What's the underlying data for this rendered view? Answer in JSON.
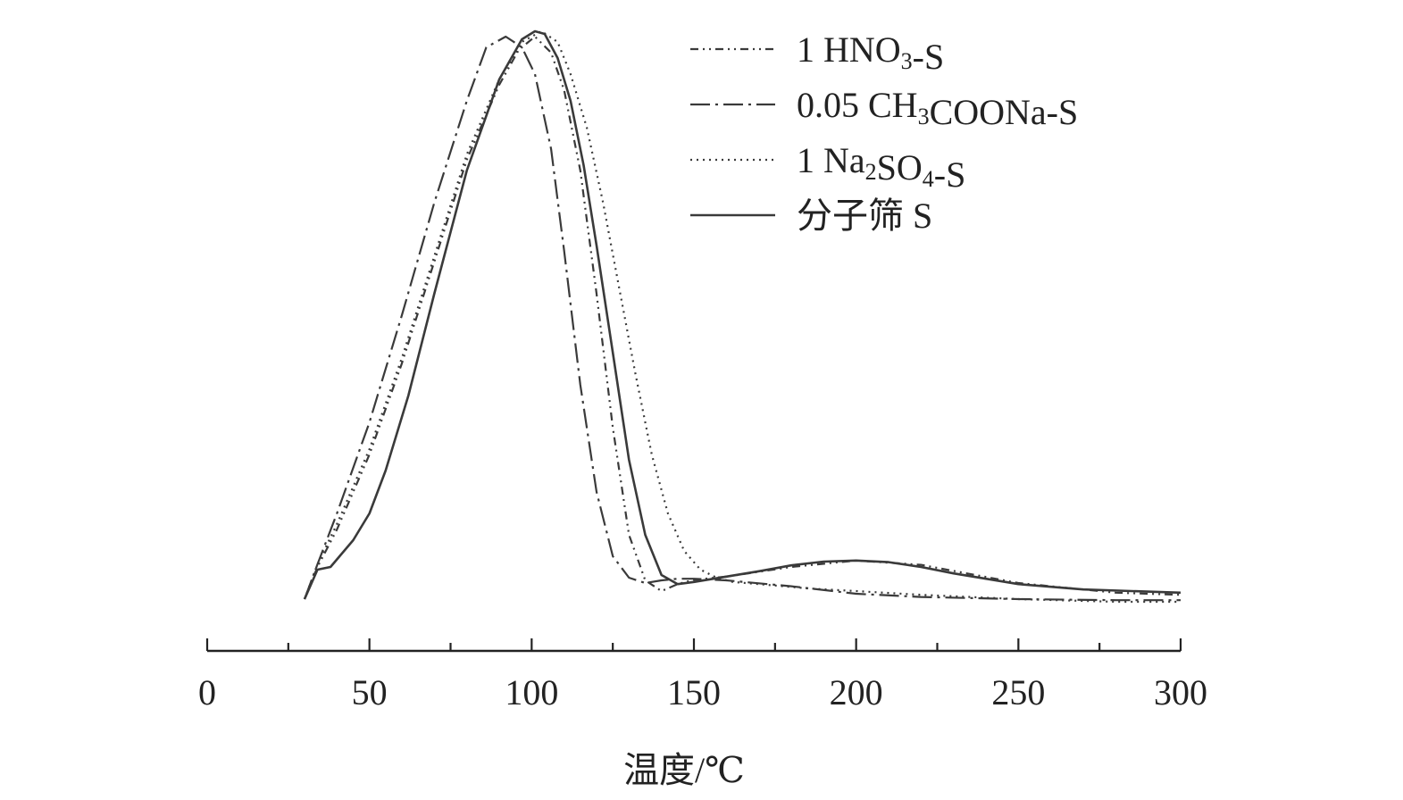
{
  "chart_data": {
    "type": "line",
    "title": "",
    "xlabel": "温度/℃",
    "ylabel": "",
    "xlim": [
      0,
      300
    ],
    "ylim": [
      0,
      1.1
    ],
    "x_ticks": [
      0,
      50,
      100,
      150,
      200,
      250,
      300
    ],
    "x_tick_labels": [
      "0",
      "50",
      "100",
      "150",
      "200",
      "250",
      "300"
    ],
    "grid": false,
    "legend_position": "top-right",
    "series": [
      {
        "name": "1 HNO3-S",
        "label_parts": [
          {
            "t": "1 HNO"
          },
          {
            "t": "3",
            "sub": true
          },
          {
            "t": "-S"
          }
        ],
        "style": "dash-dot-dot",
        "color": "#3a3a3a",
        "x": [
          30,
          34,
          40,
          50,
          60,
          70,
          80,
          90,
          96,
          101,
          106,
          110,
          115,
          120,
          125,
          130,
          135,
          140,
          145,
          150,
          160,
          180,
          200,
          220,
          250,
          280,
          300
        ],
        "y": [
          0.0,
          0.06,
          0.13,
          0.27,
          0.44,
          0.63,
          0.82,
          0.96,
          1.025,
          1.05,
          1.02,
          0.95,
          0.8,
          0.57,
          0.32,
          0.12,
          0.035,
          0.015,
          0.028,
          0.036,
          0.042,
          0.06,
          0.072,
          0.064,
          0.03,
          0.012,
          0.008
        ]
      },
      {
        "name": "0.05 CH3COONa-S",
        "label_parts": [
          {
            "t": "0.05 CH"
          },
          {
            "t": "3",
            "sub": true
          },
          {
            "t": "COONa-S"
          }
        ],
        "style": "long-dash-dot",
        "color": "#3a3a3a",
        "x": [
          30,
          34,
          40,
          50,
          60,
          70,
          80,
          86,
          92,
          97,
          101,
          106,
          110,
          115,
          120,
          125,
          130,
          135,
          140,
          145,
          150,
          160,
          180,
          200,
          220,
          250,
          280,
          300
        ],
        "y": [
          0.0,
          0.065,
          0.16,
          0.33,
          0.53,
          0.74,
          0.93,
          1.03,
          1.05,
          1.03,
          0.98,
          0.84,
          0.65,
          0.4,
          0.2,
          0.08,
          0.04,
          0.03,
          0.035,
          0.038,
          0.038,
          0.035,
          0.024,
          0.01,
          0.004,
          0.0,
          -0.002,
          -0.002
        ]
      },
      {
        "name": "1 Na2SO4-S",
        "label_parts": [
          {
            "t": "1 Na"
          },
          {
            "t": "2",
            "sub": true
          },
          {
            "t": "SO"
          },
          {
            "t": "4",
            "sub": true
          },
          {
            "t": "-S"
          }
        ],
        "style": "dotted",
        "color": "#3a3a3a",
        "x": [
          30,
          34,
          40,
          50,
          60,
          70,
          80,
          90,
          97,
          103,
          108,
          112,
          117,
          122,
          127,
          132,
          137,
          142,
          147,
          152,
          157,
          162,
          170,
          185,
          200,
          220,
          250,
          280,
          300
        ],
        "y": [
          0.0,
          0.065,
          0.14,
          0.28,
          0.45,
          0.64,
          0.83,
          0.97,
          1.04,
          1.06,
          1.04,
          0.98,
          0.88,
          0.74,
          0.58,
          0.42,
          0.27,
          0.16,
          0.09,
          0.055,
          0.04,
          0.032,
          0.028,
          0.02,
          0.015,
          0.008,
          0.0,
          -0.005,
          -0.005
        ]
      },
      {
        "name": "分子筛 S",
        "label_parts": [
          {
            "t": "分子筛 S"
          }
        ],
        "style": "solid",
        "color": "#3a3a3a",
        "x": [
          30,
          34,
          38,
          45,
          50,
          55,
          62,
          70,
          80,
          90,
          97,
          101,
          104,
          108,
          112,
          116,
          120,
          125,
          130,
          135,
          140,
          145,
          150,
          160,
          170,
          180,
          190,
          200,
          210,
          220,
          230,
          240,
          250,
          270,
          300
        ],
        "y": [
          0.0,
          0.055,
          0.06,
          0.11,
          0.16,
          0.24,
          0.38,
          0.57,
          0.8,
          0.97,
          1.045,
          1.06,
          1.055,
          1.01,
          0.93,
          0.81,
          0.66,
          0.46,
          0.26,
          0.12,
          0.045,
          0.028,
          0.032,
          0.042,
          0.052,
          0.063,
          0.07,
          0.072,
          0.069,
          0.06,
          0.048,
          0.038,
          0.028,
          0.018,
          0.012
        ]
      }
    ]
  }
}
